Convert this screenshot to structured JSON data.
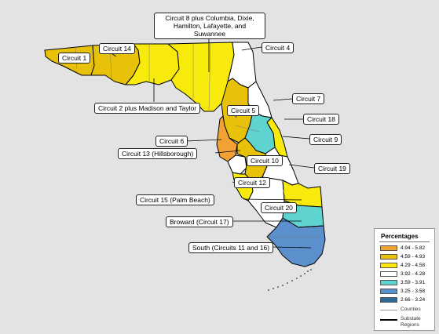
{
  "map": {
    "labels": {
      "circuit8": "Circuit 8 plus Columbia, Dixie, Hamilton, Lafayette, and Suwannee",
      "circuit1": "Circuit 1",
      "circuit14": "Circuit 14",
      "circuit4": "Circuit 4",
      "circuit2": "Circuit 2 plus Madison and Taylor",
      "circuit7": "Circuit 7",
      "circuit5": "Circuit 5",
      "circuit18": "Circuit 18",
      "circuit6": "Circuit 6",
      "circuit9": "Circuit 9",
      "circuit13": "Circuit 13 (Hillsborough)",
      "circuit10": "Circuit 10",
      "circuit19": "Circuit 19",
      "circuit12": "Circuit 12",
      "circuit15": "Circuit 15 (Palm Beach)",
      "circuit20": "Circuit 20",
      "circuit17": "Broward (Circuit 17)",
      "south": "South (Circuits 11 and 16)"
    }
  },
  "legend": {
    "title": "Percentages",
    "classes": [
      {
        "range": "4.94 - 5.82",
        "color": "#f2a234"
      },
      {
        "range": "4.59 - 4.93",
        "color": "#e8c10a"
      },
      {
        "range": "4.29 - 4.58",
        "color": "#f7ea0c"
      },
      {
        "range": "3.92 - 4.28",
        "color": "#ffffff"
      },
      {
        "range": "3.59 - 3.91",
        "color": "#5fd3cf"
      },
      {
        "range": "3.25 - 3.58",
        "color": "#5b90cc"
      },
      {
        "range": "2.66 - 3.24",
        "color": "#2b6a96"
      }
    ],
    "counties_label": "Counties",
    "substate_label": "Substate Regions"
  },
  "colors": {
    "background": "#e3e3e3",
    "county_line": "#7a7a7a",
    "region_line": "#000000"
  }
}
